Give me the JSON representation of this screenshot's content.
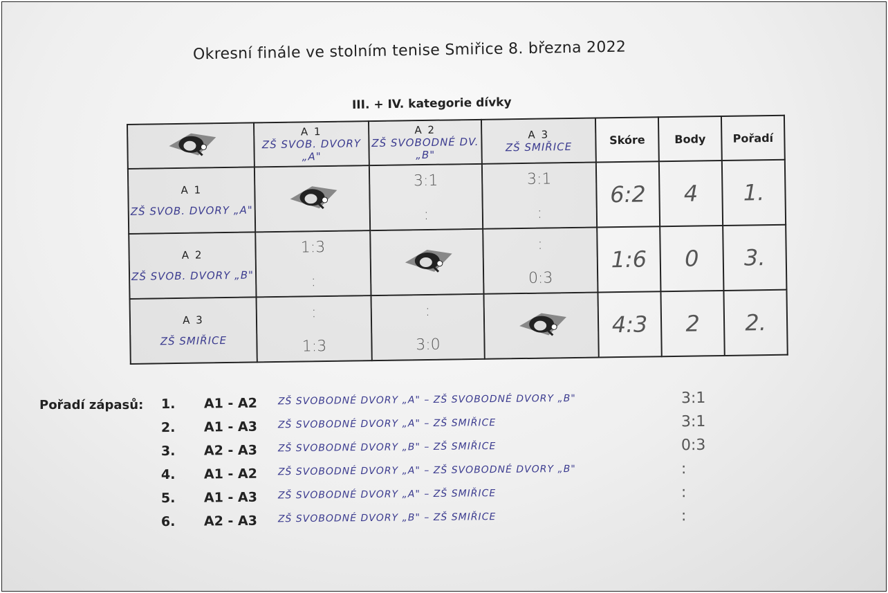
{
  "title": "Okresní finále ve stolním tenise Smiřice 8. března 2022",
  "subtitle": "III. + IV. kategorie dívky",
  "colors": {
    "ink": "#222222",
    "handwriting": "#3b3b8f",
    "pencil": "#555555"
  },
  "logo_icon": "table-tennis-paddles-logo",
  "table": {
    "columns": [
      {
        "code": "A 1",
        "team": "ZŠ SVOB. DVORY „A\""
      },
      {
        "code": "A 2",
        "team": "ZŠ SVOBODNÉ DV. „B\""
      },
      {
        "code": "A 3",
        "team": "ZŠ SMIŘICE"
      }
    ],
    "stat_headers": {
      "score": "Skóre",
      "points": "Body",
      "rank": "Pořadí"
    },
    "rows": [
      {
        "code": "A 1",
        "team": "ZŠ SVOB. DVORY „A\"",
        "cells": [
          null,
          {
            "top": "3:1",
            "bottom": ":"
          },
          {
            "top": "3:1",
            "bottom": ":"
          }
        ],
        "score": "6:2",
        "points": "4",
        "rank": "1."
      },
      {
        "code": "A 2",
        "team": "ZŠ SVOB. DVORY „B\"",
        "cells": [
          {
            "top": "1:3",
            "bottom": ":"
          },
          null,
          {
            "top": ":",
            "bottom": "0:3"
          }
        ],
        "score": "1:6",
        "points": "0",
        "rank": "3."
      },
      {
        "code": "A 3",
        "team": "ZŠ SMIŘICE",
        "cells": [
          {
            "top": ":",
            "bottom": "1:3"
          },
          {
            "top": ":",
            "bottom": "3:0"
          },
          null
        ],
        "score": "4:3",
        "points": "2",
        "rank": "2."
      }
    ]
  },
  "matches": {
    "label": "Pořadí zápasů:",
    "items": [
      {
        "no": "1.",
        "pair": "A1 - A2",
        "teams": "ZŠ SVOBODNÉ DVORY „A\" – ZŠ SVOBODNÉ DVORY „B\"",
        "result": "3:1"
      },
      {
        "no": "2.",
        "pair": "A1 - A3",
        "teams": "ZŠ SVOBODNÉ DVORY „A\" – ZŠ SMIŘICE",
        "result": "3:1"
      },
      {
        "no": "3.",
        "pair": "A2 - A3",
        "teams": "ZŠ SVOBODNÉ DVORY „B\" – ZŠ SMIŘICE",
        "result": "0:3"
      },
      {
        "no": "4.",
        "pair": "A1 - A2",
        "teams": "ZŠ SVOBODNÉ DVORY „A\" – ZŠ SVOBODNÉ DVORY „B\"",
        "result": ":"
      },
      {
        "no": "5.",
        "pair": "A1 - A3",
        "teams": "ZŠ SVOBODNÉ DVORY „A\" – ZŠ SMIŘICE",
        "result": ":"
      },
      {
        "no": "6.",
        "pair": "A2 - A3",
        "teams": "ZŠ SVOBODNÉ DVORY „B\" – ZŠ SMIŘICE",
        "result": ":"
      }
    ]
  }
}
